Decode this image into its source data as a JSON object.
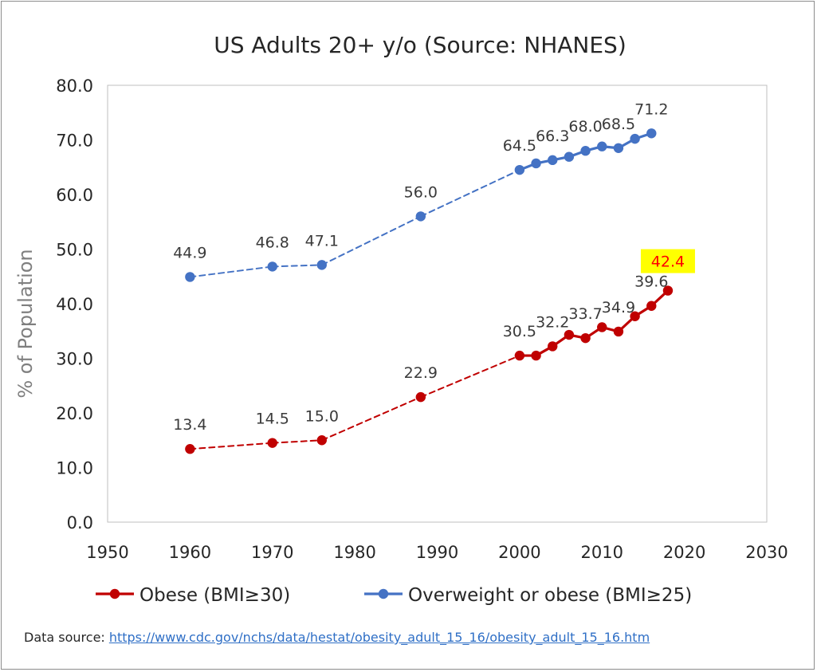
{
  "chart_data": {
    "type": "line",
    "title": "US Adults 20+ y/o (Source: NHANES)",
    "xlabel": "",
    "ylabel": "% of Population",
    "xlim": [
      1950,
      2030
    ],
    "ylim": [
      0,
      80
    ],
    "x_ticks": [
      "1950",
      "1960",
      "1970",
      "1980",
      "1990",
      "2000",
      "2010",
      "2020",
      "2030"
    ],
    "y_ticks": [
      "0.0",
      "10.0",
      "20.0",
      "30.0",
      "40.0",
      "50.0",
      "60.0",
      "70.0",
      "80.0"
    ],
    "grid": false,
    "legend_position": "bottom",
    "series": [
      {
        "name": "Obese (BMI≥30)",
        "color": "#c00000",
        "x": [
          1960,
          1970,
          1976,
          1988,
          2000,
          2002,
          2004,
          2006,
          2008,
          2010,
          2012,
          2014,
          2016,
          2018
        ],
        "values": [
          13.4,
          14.5,
          15.0,
          22.9,
          30.5,
          30.5,
          32.2,
          34.3,
          33.7,
          35.7,
          34.9,
          37.7,
          39.6,
          42.4
        ],
        "dashed_segments_through_x": 2000,
        "data_labels": [
          {
            "x": 1960,
            "text": "13.4"
          },
          {
            "x": 1970,
            "text": "14.5"
          },
          {
            "x": 1976,
            "text": "15.0"
          },
          {
            "x": 1988,
            "text": "22.9"
          },
          {
            "x": 2000,
            "text": "30.5"
          },
          {
            "x": 2004,
            "text": "32.2"
          },
          {
            "x": 2008,
            "text": "33.7"
          },
          {
            "x": 2012,
            "text": "34.9"
          },
          {
            "x": 2016,
            "text": "39.6"
          },
          {
            "x": 2018,
            "text": "42.4",
            "highlight": true,
            "text_color": "#ff0000",
            "highlight_color": "#ffff00"
          }
        ]
      },
      {
        "name": "Overweight or obese (BMI≥25)",
        "color": "#4472c4",
        "x": [
          1960,
          1970,
          1976,
          1988,
          2000,
          2002,
          2004,
          2006,
          2008,
          2010,
          2012,
          2014,
          2016
        ],
        "values": [
          44.9,
          46.8,
          47.1,
          56.0,
          64.5,
          65.7,
          66.3,
          66.9,
          68.0,
          68.8,
          68.5,
          70.2,
          71.2
        ],
        "dashed_segments_through_x": 2000,
        "data_labels": [
          {
            "x": 1960,
            "text": "44.9"
          },
          {
            "x": 1970,
            "text": "46.8"
          },
          {
            "x": 1976,
            "text": "47.1"
          },
          {
            "x": 1988,
            "text": "56.0"
          },
          {
            "x": 2000,
            "text": "64.5"
          },
          {
            "x": 2004,
            "text": "66.3"
          },
          {
            "x": 2008,
            "text": "68.0"
          },
          {
            "x": 2012,
            "text": "68.5"
          },
          {
            "x": 2016,
            "text": "71.2"
          }
        ]
      }
    ]
  },
  "source": {
    "label": "Data source:",
    "url_text": "https://www.cdc.gov/nchs/data/hestat/obesity_adult_15_16/obesity_adult_15_16.htm"
  }
}
